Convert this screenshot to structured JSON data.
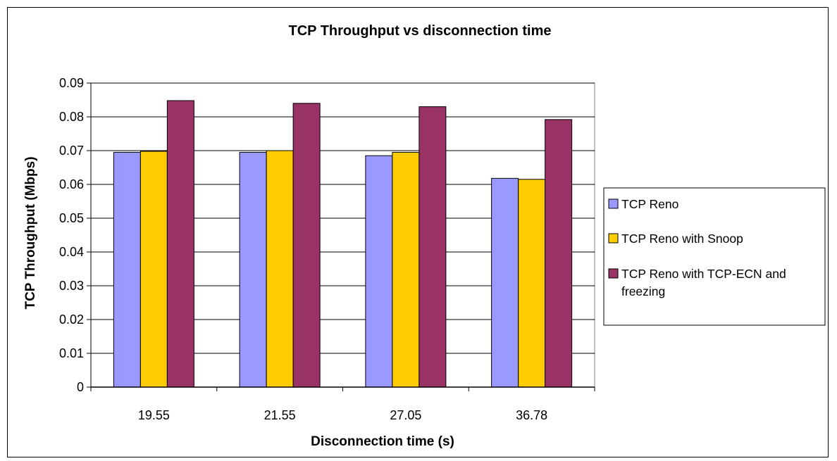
{
  "chart_data": {
    "type": "bar",
    "title": "TCP Throughput vs disconnection time",
    "xlabel": "Disconnection time (s)",
    "ylabel": "TCP Throughput (Mbps)",
    "categories": [
      "19.55",
      "21.55",
      "27.05",
      "36.78"
    ],
    "ylim": [
      0,
      0.09
    ],
    "yticks": [
      "0",
      "0.01",
      "0.02",
      "0.03",
      "0.04",
      "0.05",
      "0.06",
      "0.07",
      "0.08",
      "0.09"
    ],
    "grid": true,
    "legend_position": "right",
    "series": [
      {
        "name": "TCP Reno",
        "color": "#9999ff",
        "values": [
          0.0695,
          0.0695,
          0.0685,
          0.0618
        ]
      },
      {
        "name": "TCP Reno with Snoop",
        "color": "#ffcc00",
        "values": [
          0.0698,
          0.07,
          0.0695,
          0.0615
        ]
      },
      {
        "name": [
          "TCP Reno with TCP-ECN and",
          "freezing"
        ],
        "color": "#993366",
        "values": [
          0.0848,
          0.084,
          0.083,
          0.0792
        ]
      }
    ]
  }
}
